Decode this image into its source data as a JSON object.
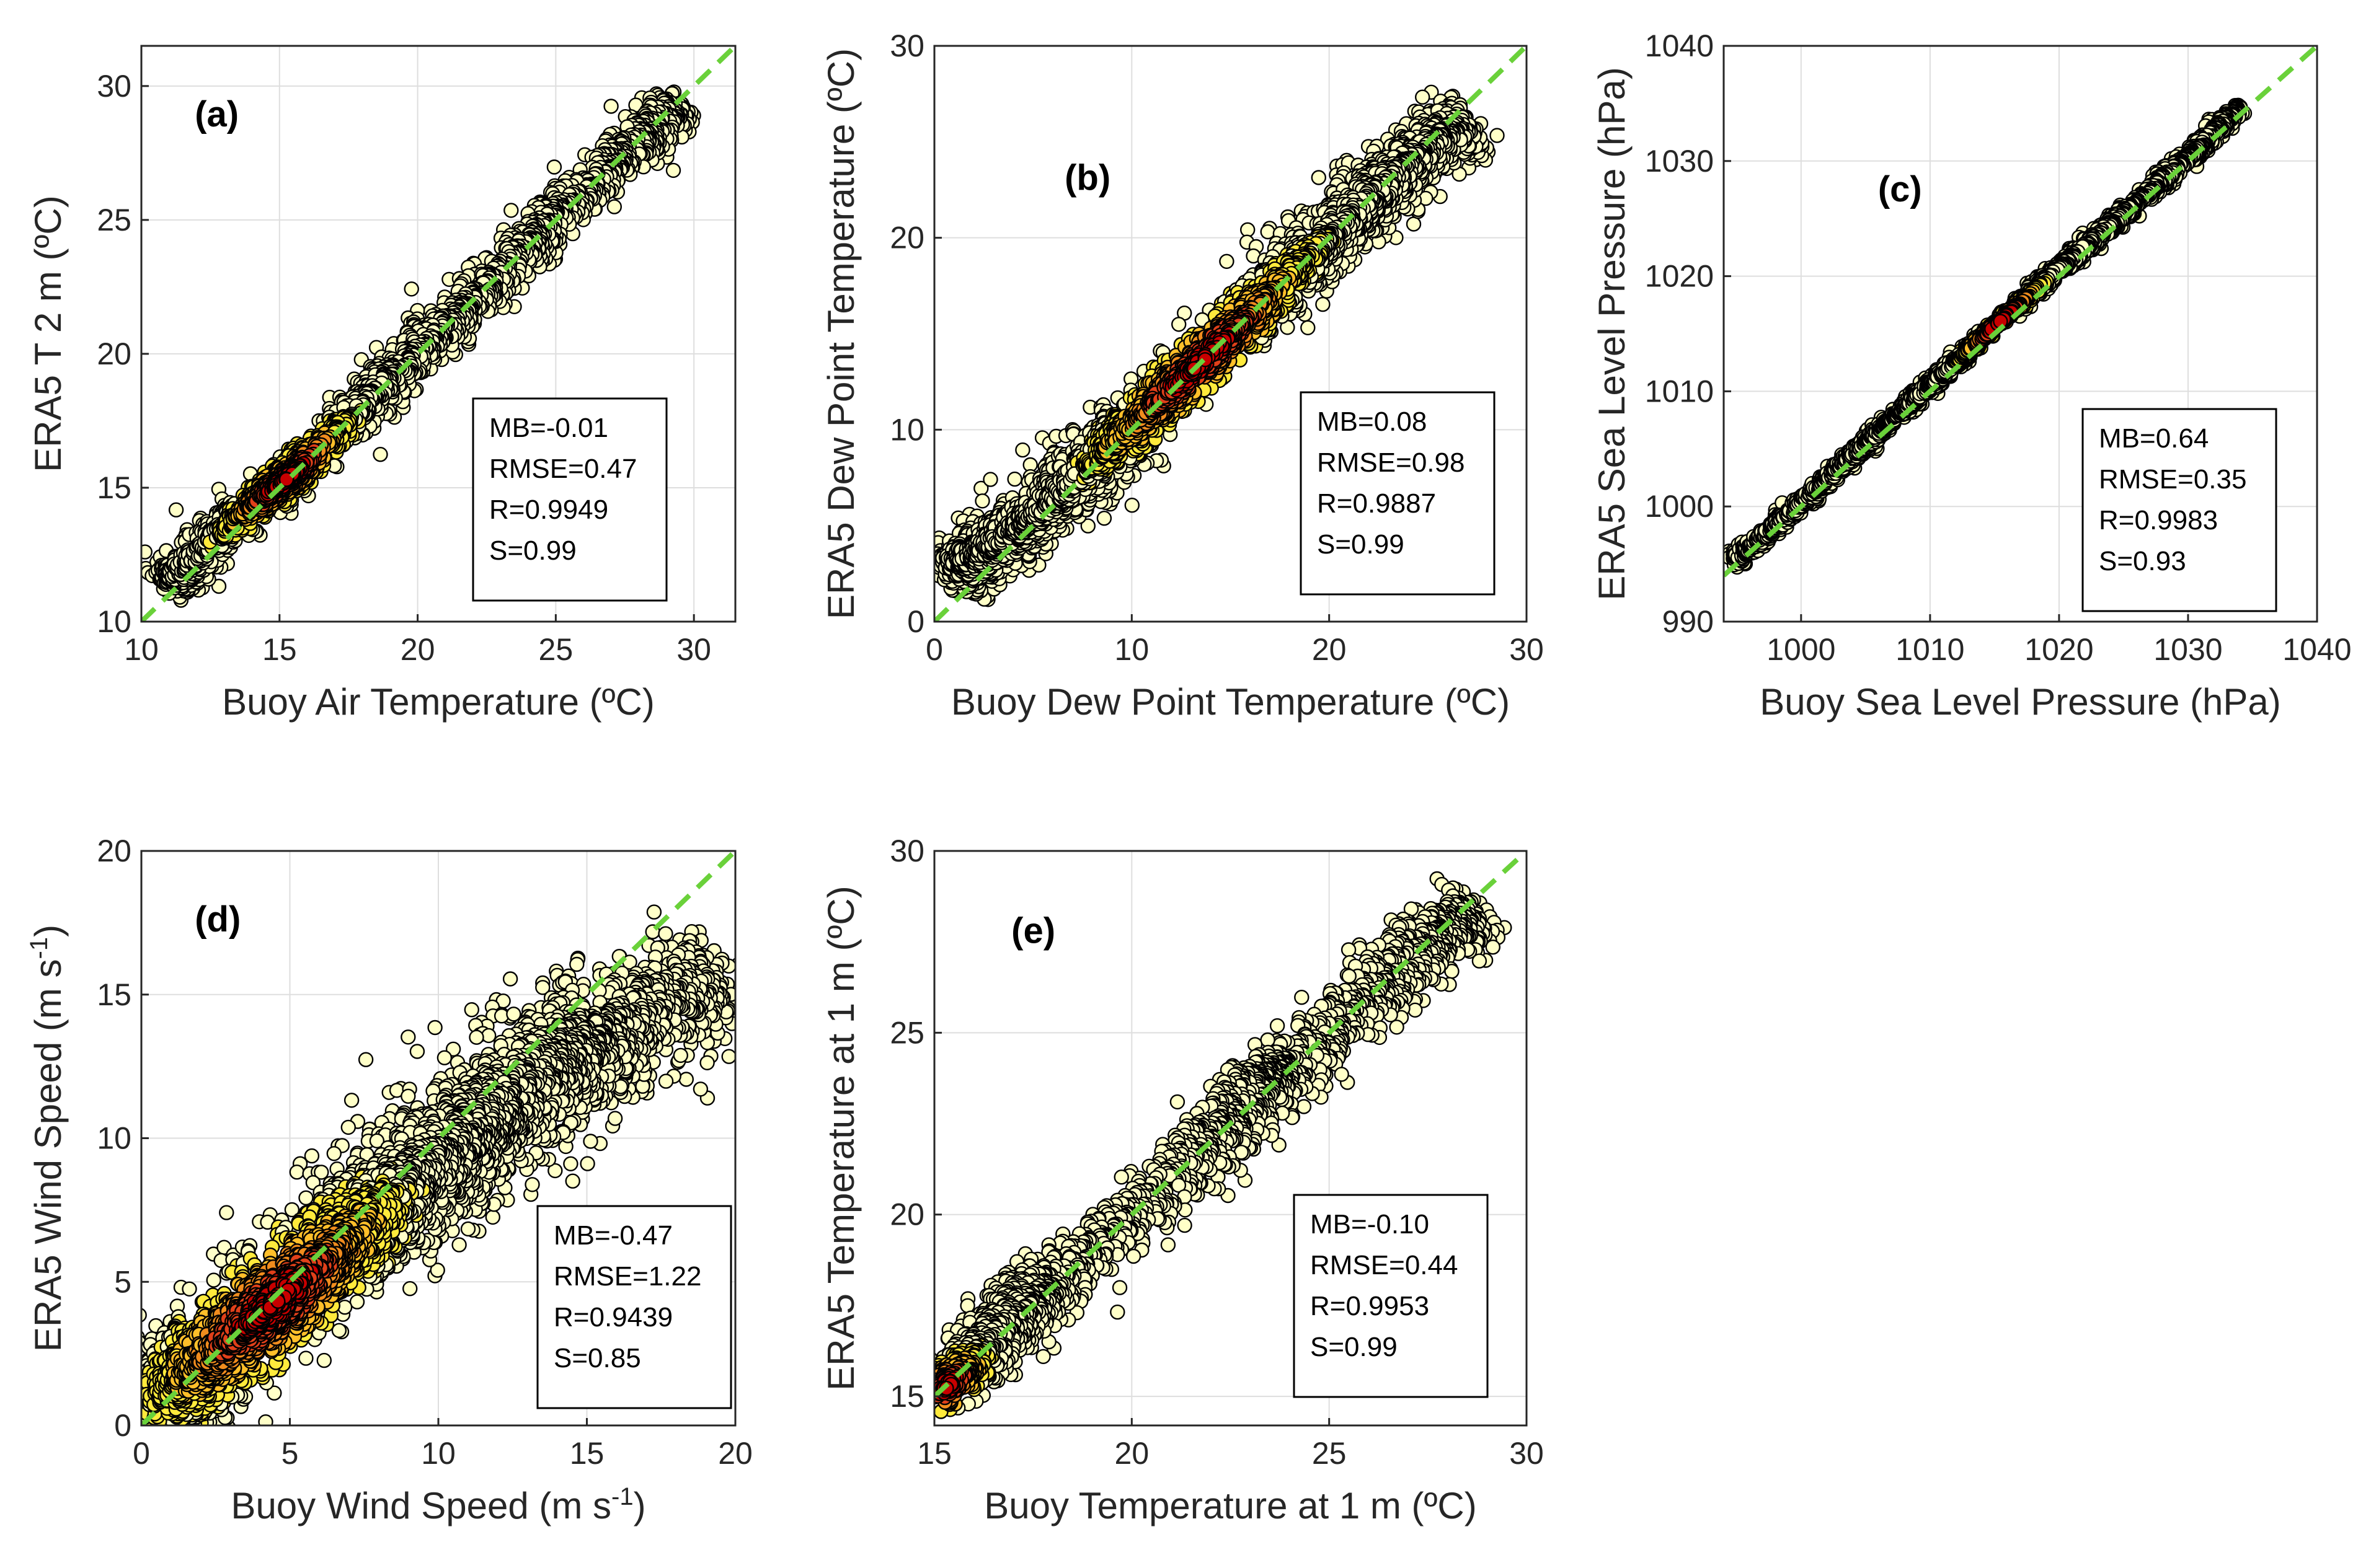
{
  "colors": {
    "point_low": "#ffffc8",
    "point_mid": "#ffea3c",
    "point_hi": "#f08c1e",
    "point_max": "#c80000",
    "point_edge": "#000000",
    "reference_line": "#6ad13a",
    "grid": "#dedede",
    "axis": "#262626"
  },
  "chart_data": [
    {
      "type": "scatter",
      "panel_label": "(a)",
      "xlabel": "Buoy Air Temperature (ºC)",
      "ylabel": "ERA5 T 2 m (ºC)",
      "xlim": [
        10,
        31.5
      ],
      "ylim": [
        10,
        31.5
      ],
      "xticks": [
        10,
        15,
        20,
        25,
        30
      ],
      "yticks": [
        10,
        15,
        20,
        25,
        30
      ],
      "reference_line": "y = x",
      "stats": [
        "MB=-0.01",
        "RMSE=0.47",
        "R=0.9949",
        "S=0.99"
      ],
      "stats_position": "bottom-right",
      "points": {
        "count": 1900,
        "spine": [
          [
            10.8,
            11.4
          ],
          [
            12,
            12.4
          ],
          [
            14,
            14.3
          ],
          [
            15.2,
            15.3
          ],
          [
            16,
            16
          ],
          [
            18,
            18.1
          ],
          [
            20,
            20
          ],
          [
            22,
            22
          ],
          [
            24,
            24.1
          ],
          [
            26,
            26
          ],
          [
            28,
            28
          ],
          [
            29.5,
            29.3
          ]
        ],
        "spread": 0.45,
        "density_peak": [
          15.3,
          15.3
        ],
        "density_width": 2.0
      }
    },
    {
      "type": "scatter",
      "panel_label": "(b)",
      "xlabel": "Buoy Dew Point Temperature (ºC)",
      "ylabel": "ERA5 Dew Point Temperature (ºC)",
      "xlim": [
        0,
        30
      ],
      "ylim": [
        0,
        30
      ],
      "xticks": [
        0,
        10,
        20,
        30
      ],
      "yticks": [
        0,
        10,
        20,
        30
      ],
      "reference_line": "y = x",
      "stats": [
        "MB=0.08",
        "RMSE=0.98",
        "R=0.9887",
        "S=0.99"
      ],
      "stats_position": "bottom-right",
      "points": {
        "count": 2400,
        "spine": [
          [
            0.6,
            2.6
          ],
          [
            2,
            3.2
          ],
          [
            4,
            4.6
          ],
          [
            6,
            6.3
          ],
          [
            8,
            8.2
          ],
          [
            10,
            10.1
          ],
          [
            12,
            12.1
          ],
          [
            14,
            14
          ],
          [
            16,
            16
          ],
          [
            18,
            18.1
          ],
          [
            20,
            20
          ],
          [
            22,
            22
          ],
          [
            24,
            24
          ],
          [
            26,
            25.5
          ],
          [
            27.2,
            25.8
          ]
        ],
        "spread": 0.9,
        "density_peak": [
          13.5,
          13.5
        ],
        "density_width": 5.0
      }
    },
    {
      "type": "scatter",
      "panel_label": "(c)",
      "xlabel": "Buoy Sea Level Pressure (hPa)",
      "ylabel": "ERA5 Sea Level Pressure (hPa)",
      "xlim": [
        994,
        1040
      ],
      "ylim": [
        990,
        1040
      ],
      "xticks": [
        1000,
        1010,
        1020,
        1030,
        1040
      ],
      "yticks": [
        990,
        1000,
        1010,
        1020,
        1030,
        1040
      ],
      "reference_line": "y = x",
      "stats": [
        "MB=0.64",
        "RMSE=0.35",
        "R=0.9983",
        "S=0.93"
      ],
      "stats_position": "bottom-right",
      "points": {
        "count": 1600,
        "spine": [
          [
            994.8,
            995.2
          ],
          [
            1000,
            1000.3
          ],
          [
            1005,
            1005.4
          ],
          [
            1010,
            1010.5
          ],
          [
            1015,
            1015.6
          ],
          [
            1020,
            1020.6
          ],
          [
            1025,
            1025.4
          ],
          [
            1030,
            1030.3
          ],
          [
            1034,
            1034.7
          ]
        ],
        "spread": 0.35,
        "density_peak": [
          1015.5,
          1016
        ],
        "density_width": 3.0
      }
    },
    {
      "type": "scatter",
      "panel_label": "(d)",
      "xlabel": "Buoy Wind Speed (m s-1)",
      "ylabel": "ERA5 Wind Speed (m s-1)",
      "xlim": [
        0,
        20
      ],
      "ylim": [
        0,
        20
      ],
      "xticks": [
        0,
        5,
        10,
        15,
        20
      ],
      "yticks": [
        0,
        5,
        10,
        15,
        20
      ],
      "reference_line": "y = x",
      "stats": [
        "MB=-0.47",
        "RMSE=1.22",
        "R=0.9439",
        "S=0.85"
      ],
      "stats_position": "bottom-right",
      "points": {
        "count": 3400,
        "spine": [
          [
            0.2,
            0.4
          ],
          [
            2,
            2.1
          ],
          [
            4,
            3.8
          ],
          [
            6,
            5.7
          ],
          [
            8,
            7.5
          ],
          [
            10,
            9.3
          ],
          [
            12,
            11
          ],
          [
            14,
            12.6
          ],
          [
            16,
            13.8
          ],
          [
            19.6,
            15.8
          ]
        ],
        "spread": 1.15,
        "density_peak": [
          4.5,
          4.2
        ],
        "density_width": 3.5
      }
    },
    {
      "type": "scatter",
      "panel_label": "(e)",
      "xlabel": "Buoy Temperature at 1 m (ºC)",
      "ylabel": "ERA5 Temperature at 1 m (ºC)",
      "xlim": [
        15,
        30
      ],
      "ylim": [
        14.2,
        30
      ],
      "xticks": [
        15,
        20,
        25,
        30
      ],
      "yticks": [
        15,
        20,
        25,
        30
      ],
      "reference_line": "y = x",
      "stats": [
        "MB=-0.10",
        "RMSE=0.44",
        "R=0.9953",
        "S=0.99"
      ],
      "stats_position": "bottom-right",
      "points": {
        "count": 2000,
        "spine": [
          [
            15,
            15
          ],
          [
            16,
            16
          ],
          [
            17,
            17.2
          ],
          [
            18,
            18.1
          ],
          [
            20,
            20
          ],
          [
            22,
            22
          ],
          [
            23,
            23.4
          ],
          [
            24,
            24
          ],
          [
            26,
            26
          ],
          [
            27.5,
            27.4
          ],
          [
            28.8,
            28.4
          ]
        ],
        "spread": 0.45,
        "density_peak": [
          15.4,
          15.2
        ],
        "density_width": 0.8
      }
    }
  ]
}
